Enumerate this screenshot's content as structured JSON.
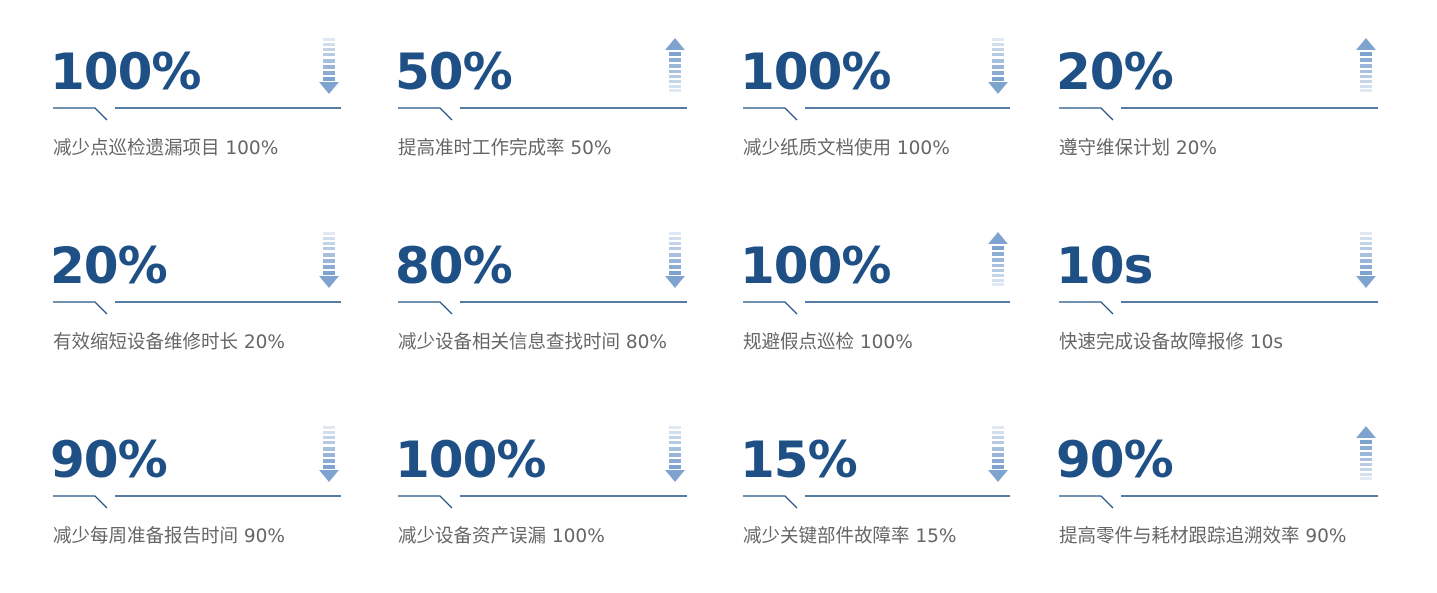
{
  "colors": {
    "value": "#1f5085",
    "line": "#1f5085",
    "arrow": "#7fa3cf",
    "label": "#666666"
  },
  "items": [
    {
      "value": "100%",
      "label": "减少点巡检遗漏项目 100%",
      "arrow": "down-arrow-icon"
    },
    {
      "value": "50%",
      "label": "提高准时工作完成率 50%",
      "arrow": "up-arrow-icon"
    },
    {
      "value": "100%",
      "label": "减少纸质文档使用 100%",
      "arrow": "down-arrow-icon"
    },
    {
      "value": "20%",
      "label": "遵守维保计划 20%",
      "arrow": "up-arrow-icon"
    },
    {
      "value": "20%",
      "label": "有效缩短设备维修时长 20%",
      "arrow": "down-arrow-icon"
    },
    {
      "value": "80%",
      "label": "减少设备相关信息查找时间 80%",
      "arrow": "down-arrow-icon"
    },
    {
      "value": "100%",
      "label": "规避假点巡检 100%",
      "arrow": "up-arrow-icon"
    },
    {
      "value": "10s",
      "label": "快速完成设备故障报修 10s",
      "arrow": "down-arrow-icon"
    },
    {
      "value": "90%",
      "label": "减少每周准备报告时间 90%",
      "arrow": "down-arrow-icon"
    },
    {
      "value": "100%",
      "label": "减少设备资产误漏 100%",
      "arrow": "down-arrow-icon"
    },
    {
      "value": "15%",
      "label": "减少关键部件故障率 15%",
      "arrow": "down-arrow-icon"
    },
    {
      "value": "90%",
      "label": "提高零件与耗材跟踪追溯效率 90%",
      "arrow": "up-arrow-icon"
    }
  ]
}
